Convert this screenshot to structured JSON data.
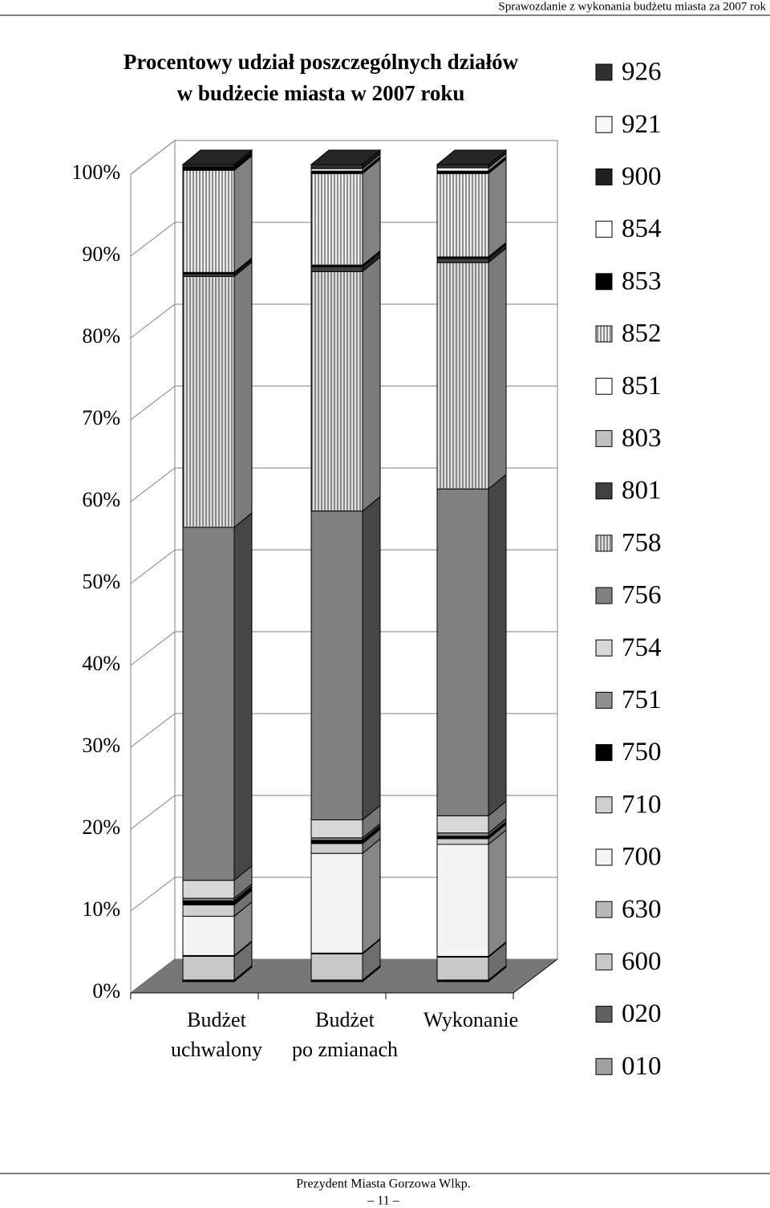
{
  "header": "Sprawozdanie z wykonania budżetu miasta za 2007 rok",
  "footer": {
    "author": "Prezydent Miasta Gorzowa Wlkp.",
    "page": "– 11 –"
  },
  "chart_data": {
    "type": "stacked_bar_3d",
    "title": [
      "Procentowy udział poszczególnych działów",
      "w budżecie miasta w 2007 roku"
    ],
    "categories": [
      [
        "Budżet",
        "uchwalony"
      ],
      [
        "Budżet",
        "po zmianach"
      ],
      [
        "Wykonanie"
      ]
    ],
    "ylim": [
      0,
      100
    ],
    "yticks": [
      {
        "value": 0,
        "label": "0%"
      },
      {
        "value": 10,
        "label": "10%"
      },
      {
        "value": 20,
        "label": "20%"
      },
      {
        "value": 30,
        "label": "30%"
      },
      {
        "value": 40,
        "label": "40%"
      },
      {
        "value": 50,
        "label": "50%"
      },
      {
        "value": 60,
        "label": "60%"
      },
      {
        "value": 70,
        "label": "70%"
      },
      {
        "value": 80,
        "label": "80%"
      },
      {
        "value": 90,
        "label": "90%"
      },
      {
        "value": 100,
        "label": "100%"
      }
    ],
    "grid": true,
    "series": [
      {
        "name": "010",
        "color": "#a0a0a0",
        "values": [
          0.1,
          0.1,
          0.1
        ]
      },
      {
        "name": "020",
        "color": "#606060",
        "values": [
          0.1,
          0.1,
          0.1
        ]
      },
      {
        "name": "600",
        "color": "#c8c8c8",
        "values": [
          2.9,
          3.2,
          2.8
        ]
      },
      {
        "name": "630",
        "color": "#b8b8b8",
        "values": [
          0.1,
          0.1,
          0.1
        ]
      },
      {
        "name": "700",
        "color": "#f4f4f4",
        "values": [
          4.8,
          12.2,
          13.7
        ]
      },
      {
        "name": "710",
        "color": "#d0d0d0",
        "values": [
          1.4,
          1.2,
          0.7
        ]
      },
      {
        "name": "750",
        "color": "#000000",
        "values": [
          0.5,
          0.4,
          0.3
        ]
      },
      {
        "name": "751",
        "color": "#909090",
        "values": [
          0.3,
          0.3,
          0.4
        ]
      },
      {
        "name": "754",
        "color": "#d8d8d8",
        "values": [
          2.2,
          2.2,
          2.1
        ]
      },
      {
        "name": "756",
        "color": "#808080",
        "values": [
          43.2,
          37.8,
          40.0
        ]
      },
      {
        "name": "758",
        "color": "#e0e0e0",
        "values": [
          30.7,
          29.3,
          27.7
        ]
      },
      {
        "name": "801",
        "color": "#404040",
        "values": [
          0.3,
          0.6,
          0.5
        ]
      },
      {
        "name": "803",
        "color": "#c0c0c0",
        "values": [
          0.1,
          0.1,
          0.1
        ]
      },
      {
        "name": "851",
        "color": "#ffffff",
        "values": [
          0.1,
          0.1,
          0.1
        ]
      },
      {
        "name": "852",
        "color": "#ececec",
        "values": [
          12.5,
          11.2,
          10.2
        ]
      },
      {
        "name": "853",
        "color": "#000000",
        "values": [
          0.1,
          0.1,
          0.1
        ]
      },
      {
        "name": "854",
        "color": "#ffffff",
        "values": [
          0.1,
          0.1,
          0.1
        ]
      },
      {
        "name": "900",
        "color": "#202020",
        "values": [
          0.1,
          0.1,
          0.1
        ]
      },
      {
        "name": "921",
        "color": "#f8f8f8",
        "values": [
          0.1,
          0.3,
          0.4
        ]
      },
      {
        "name": "926",
        "color": "#303030",
        "values": [
          0.3,
          0.5,
          0.4
        ]
      }
    ]
  }
}
